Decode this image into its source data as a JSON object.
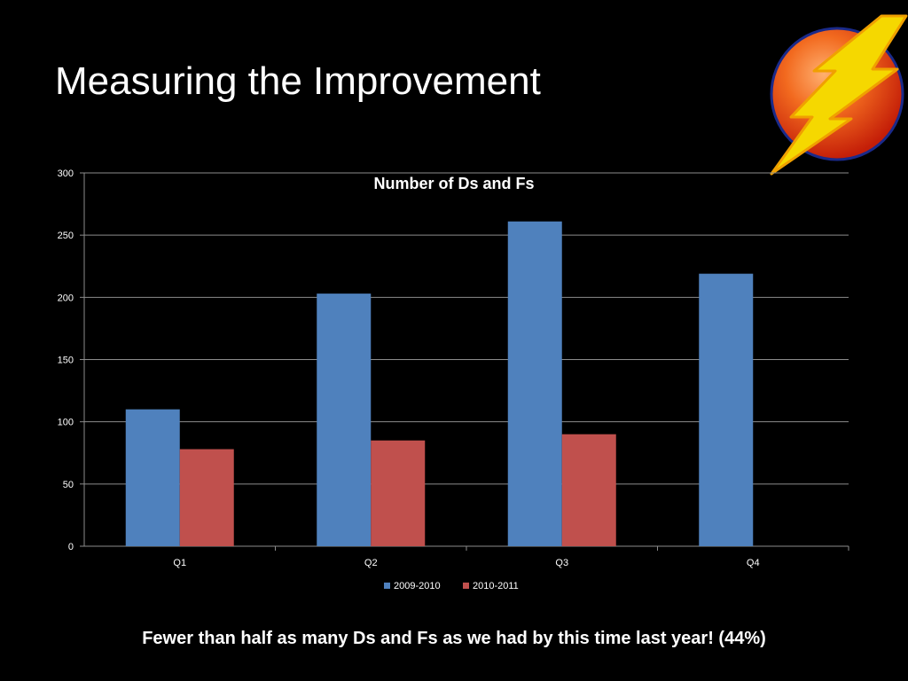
{
  "slide": {
    "title": "Measuring the Improvement",
    "caption": "Fewer than half as many Ds and Fs as we had by this time last year! (44%)"
  },
  "logo": {
    "icon": "lightning-bolt-icon",
    "colors": {
      "orb": "#e8380c",
      "orb_highlight": "#ffb070",
      "bolt": "#f5d800",
      "bolt_edge": "#f0a000"
    }
  },
  "chart_data": {
    "type": "bar",
    "title": "Number of Ds and Fs",
    "xlabel": "",
    "ylabel": "",
    "categories": [
      "Q1",
      "Q2",
      "Q3",
      "Q4"
    ],
    "series": [
      {
        "name": "2009-2010",
        "values": [
          110,
          203,
          261,
          219
        ],
        "color": "#4f81bd"
      },
      {
        "name": "2010-2011",
        "values": [
          78,
          85,
          90,
          null
        ],
        "color": "#c0504d"
      }
    ],
    "ylim": [
      0,
      300
    ],
    "yticks": [
      0,
      50,
      100,
      150,
      200,
      250,
      300
    ],
    "grid": true,
    "legend": "bottom"
  }
}
